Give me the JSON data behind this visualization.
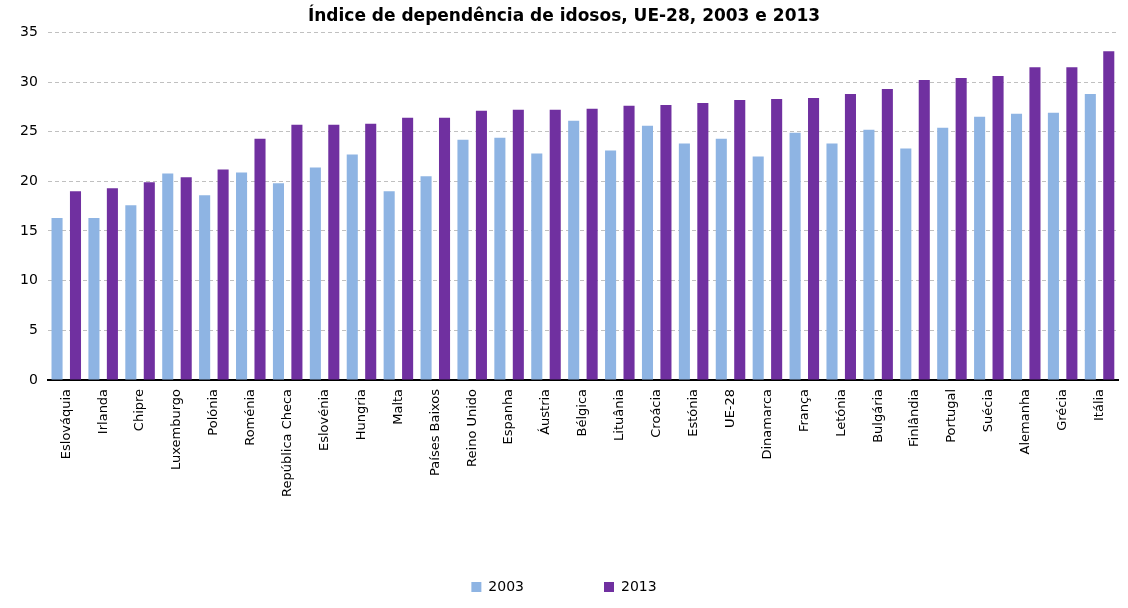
{
  "chart_data": {
    "type": "bar",
    "title": "Índice de dependência de idosos, UE-28, 2003 e 2013",
    "categories": [
      "Eslováquia",
      "Irlanda",
      "Chipre",
      "Luxemburgo",
      "Polónia",
      "Roménia",
      "República Checa",
      "Eslovénia",
      "Hungria",
      "Malta",
      "Países Baixos",
      "Reino Unido",
      "Espanha",
      "Áustria",
      "Bélgica",
      "Lituânia",
      "Croácia",
      "Estónia",
      "UE-28",
      "Dinamarca",
      "França",
      "Letónia",
      "Bulgária",
      "Finlândia",
      "Portugal",
      "Suécia",
      "Alemanha",
      "Grécia",
      "Itália"
    ],
    "series": [
      {
        "name": "2003",
        "color": "#8eb4e3",
        "values": [
          16.3,
          16.3,
          17.6,
          20.8,
          18.6,
          20.9,
          19.8,
          21.4,
          22.7,
          19.0,
          20.5,
          24.2,
          24.4,
          22.8,
          26.1,
          23.1,
          25.6,
          23.8,
          24.3,
          22.5,
          24.9,
          23.8,
          25.2,
          23.3,
          25.4,
          26.5,
          26.8,
          26.9,
          28.8
        ]
      },
      {
        "name": "2013",
        "color": "#7030a0",
        "values": [
          19.0,
          19.3,
          19.9,
          20.4,
          21.2,
          24.3,
          25.7,
          25.7,
          25.8,
          26.4,
          26.4,
          27.1,
          27.2,
          27.2,
          27.3,
          27.6,
          27.7,
          27.9,
          28.2,
          28.3,
          28.4,
          28.8,
          29.3,
          30.2,
          30.4,
          30.6,
          31.5,
          31.5,
          33.1
        ]
      }
    ],
    "ylim": [
      0,
      35
    ],
    "yticks": [
      0,
      5,
      10,
      15,
      20,
      25,
      30,
      35
    ],
    "grid": "y",
    "legend": "bottom"
  }
}
